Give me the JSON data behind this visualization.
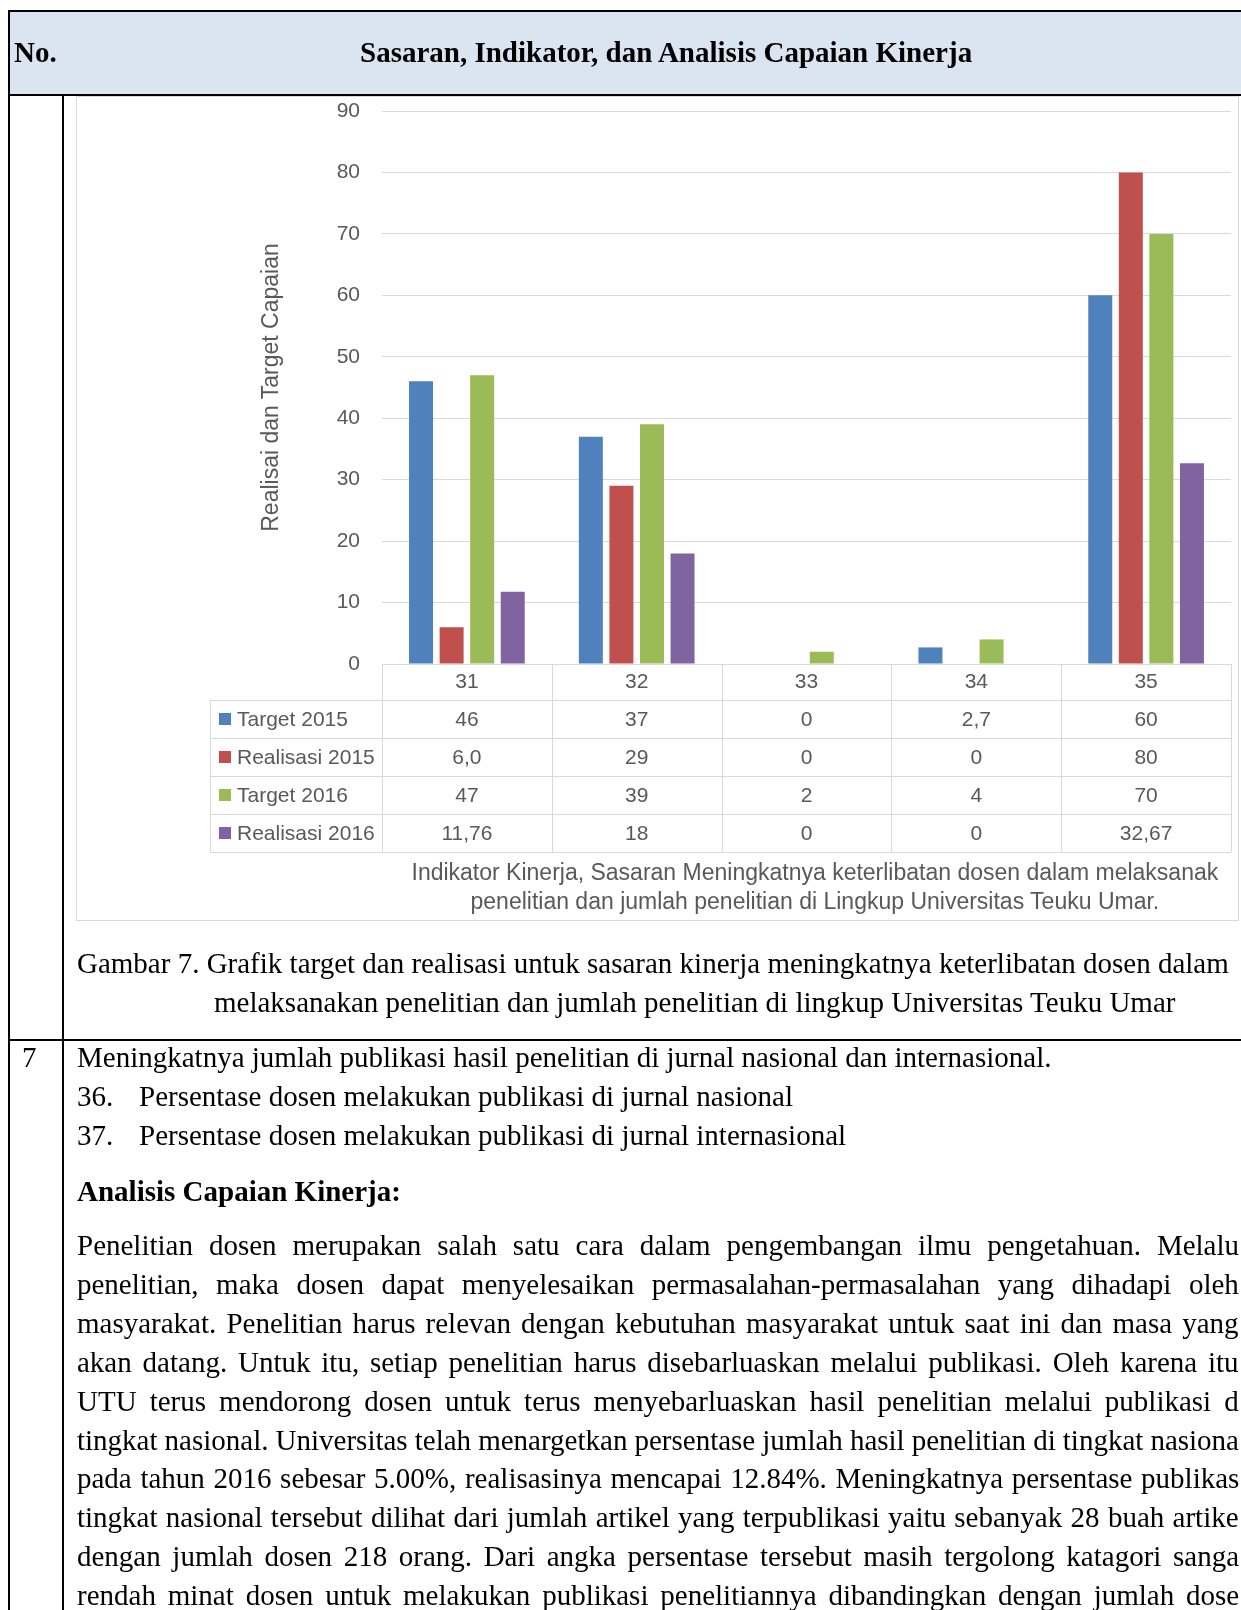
{
  "chart_data": {
    "type": "bar",
    "ylabel": "Realisai dan Target Capaian",
    "categories": [
      "31",
      "32",
      "33",
      "34",
      "35"
    ],
    "series": [
      {
        "name": "Target 2015",
        "color": "#4f81bd",
        "values": [
          46,
          37,
          0,
          2.7,
          60
        ],
        "value_labels": [
          "46",
          "37",
          "0",
          "2,7",
          "60"
        ]
      },
      {
        "name": "Realisasi 2015",
        "color": "#c0504d",
        "values": [
          6.0,
          29,
          0,
          0,
          80
        ],
        "value_labels": [
          "6,0",
          "29",
          "0",
          "0",
          "80"
        ]
      },
      {
        "name": "Target 2016",
        "color": "#9bbb59",
        "values": [
          47,
          39,
          2,
          4,
          70
        ],
        "value_labels": [
          "47",
          "39",
          "2",
          "4",
          "70"
        ]
      },
      {
        "name": "Realisasi 2016",
        "color": "#8064a2",
        "values": [
          11.76,
          18,
          0,
          0,
          32.67
        ],
        "value_labels": [
          "11,76",
          "18",
          "0",
          "0",
          "32,67"
        ]
      }
    ],
    "ylim": [
      0,
      90
    ],
    "yticks": [
      0,
      10,
      20,
      30,
      40,
      50,
      60,
      70,
      80,
      90
    ],
    "grid": "y",
    "legend": "bottom",
    "annotations": [
      "No.",
      "Sasaran, Indikator, dan Analisis Capaian Kinerja",
      "Indikator Kinerja, Sasaran Meningkatnya keterlibatan dosen dalam melaksanak\npenelitian dan jumlah penelitian di Lingkup Universitas Teuku Umar.",
      "Gambar 7. Grafik target dan realisasi untuk sasaran kinerja meningkatnya keterlibatan dosen dalam",
      "melaksanakan penelitian dan jumlah penelitian di lingkup Universitas Teuku Umar",
      "7",
      "Meningkatnya jumlah publikasi hasil penelitian di jurnal nasional dan internasional.",
      "36. Persentase dosen melakukan publikasi di jurnal nasional",
      "37. Persentase dosen melakukan publikasi di jurnal internasional",
      "Analisis Capaian Kinerja:",
      "Penelitian dosen merupakan salah satu cara dalam pengembangan ilmu pengetahuan. Melalu",
      "penelitian, maka dosen dapat menyelesaikan permasalahan-permasalahan yang dihadapi oleh",
      "masyarakat. Penelitian harus relevan dengan kebutuhan masyarakat untuk saat ini dan masa yang",
      "akan datang. Untuk itu, setiap penelitian harus disebarluaskan melalui publikasi. Oleh karena itu",
      "UTU terus mendorong dosen untuk terus menyebarluaskan hasil penelitian melalui publikasi d",
      "tingkat nasional. Universitas telah menargetkan persentase jumlah hasil penelitian di tingkat nasiona",
      "pada tahun 2016 sebesar 5.00%, realisasinya mencapai 12.84%. Meningkatnya persentase publikas",
      "tingkat nasional tersebut dilihat dari jumlah artikel yang terpublikasi yaitu sebanyak 28 buah artike",
      "dengan jumlah dosen 218 orang. Dari angka persentase tersebut masih tergolong katagori sanga",
      "rendah minat dosen untuk melakukan publikasi penelitiannya dibandingkan dengan jumlah dose"
    ]
  }
}
